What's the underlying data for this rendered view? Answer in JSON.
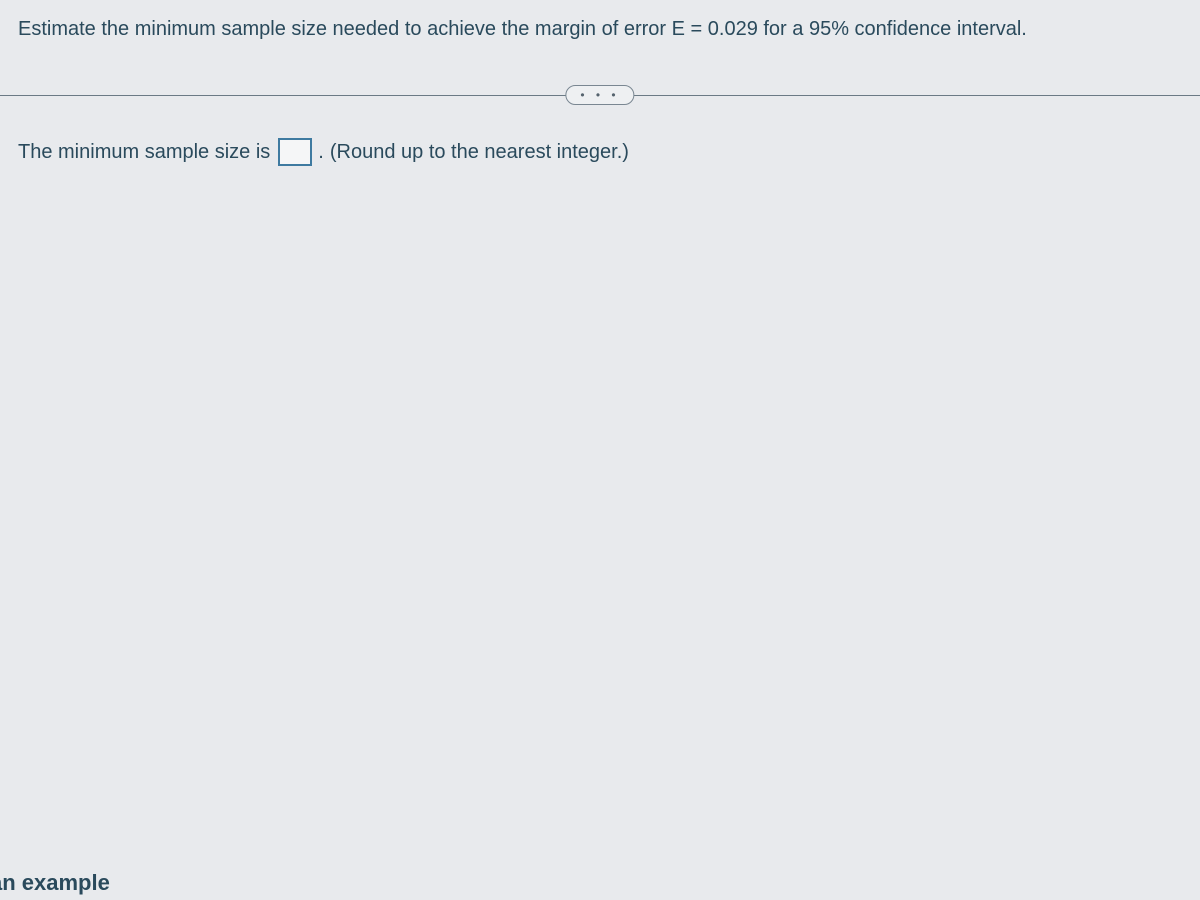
{
  "question": {
    "prompt_text": "Estimate the minimum sample size needed to achieve the margin of error E = 0.029 for a 95% confidence interval."
  },
  "divider": {
    "ellipsis_label": "• • •"
  },
  "answer": {
    "prefix_text": "The minimum sample size is",
    "input_value": "",
    "input_placeholder": "",
    "suffix_period": ".",
    "hint_text": "(Round up to the nearest integer.)"
  },
  "footer": {
    "partial_link_text": "an example"
  },
  "colors": {
    "background": "#e8eaed",
    "text_primary": "#2a4a5c",
    "divider": "#6b7a85",
    "input_border": "#3e7aa0"
  }
}
